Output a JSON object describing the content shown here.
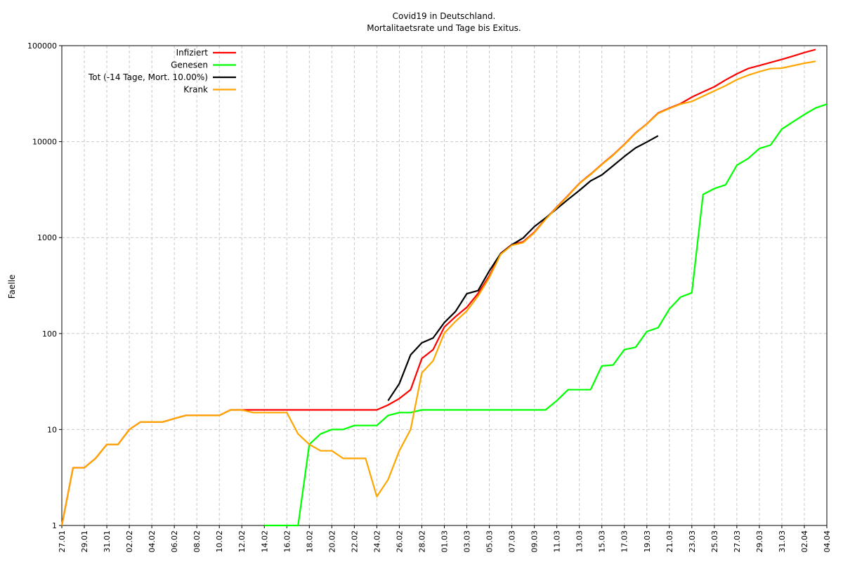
{
  "chart_data": {
    "type": "line",
    "title": "Covid19 in Deutschland.",
    "subtitle": "Mortalitaetsrate und Tage bis Exitus.",
    "ylabel": "Faelle",
    "y_scale": "log",
    "ylim": [
      1,
      100000
    ],
    "y_ticks": [
      1,
      10,
      100,
      1000,
      10000,
      100000
    ],
    "y_tick_labels": [
      "1",
      "10",
      "100",
      "1000",
      "10000",
      "100000"
    ],
    "grid": true,
    "legend_position": "top-left",
    "x": [
      "27.01",
      "28.01",
      "29.01",
      "30.01",
      "31.01",
      "01.02",
      "02.02",
      "03.02",
      "04.02",
      "05.02",
      "06.02",
      "07.02",
      "08.02",
      "09.02",
      "10.02",
      "11.02",
      "12.02",
      "13.02",
      "14.02",
      "15.02",
      "16.02",
      "17.02",
      "18.02",
      "19.02",
      "20.02",
      "21.02",
      "22.02",
      "23.02",
      "24.02",
      "25.02",
      "26.02",
      "27.02",
      "28.02",
      "29.02",
      "01.03",
      "02.03",
      "03.03",
      "04.03",
      "05.03",
      "06.03",
      "07.03",
      "08.03",
      "09.03",
      "10.03",
      "11.03",
      "12.03",
      "13.03",
      "14.03",
      "15.03",
      "16.03",
      "17.03",
      "18.03",
      "19.03",
      "20.03",
      "21.03",
      "22.03",
      "23.03",
      "24.03",
      "25.03",
      "26.03",
      "27.03",
      "28.03",
      "29.03",
      "30.03",
      "31.03",
      "01.04",
      "02.04",
      "03.04",
      "04.04"
    ],
    "x_tick_labels": [
      "27.01",
      "29.01",
      "31.01",
      "02.02",
      "04.02",
      "06.02",
      "08.02",
      "10.02",
      "12.02",
      "14.02",
      "16.02",
      "18.02",
      "20.02",
      "22.02",
      "24.02",
      "26.02",
      "28.02",
      "01.03",
      "03.03",
      "05.03",
      "07.03",
      "09.03",
      "11.03",
      "13.03",
      "15.03",
      "17.03",
      "19.03",
      "21.03",
      "23.03",
      "25.03",
      "27.03",
      "29.03",
      "31.03",
      "02.04",
      "04.04"
    ],
    "series": [
      {
        "name": "Infiziert",
        "color": "#ff0000",
        "values": [
          1,
          4,
          4,
          5,
          7,
          7,
          10,
          12,
          12,
          12,
          13,
          14,
          14,
          14,
          14,
          16,
          16,
          16,
          16,
          16,
          16,
          16,
          16,
          16,
          16,
          16,
          16,
          16,
          16,
          18,
          21,
          26,
          55,
          68,
          117,
          150,
          188,
          262,
          400,
          684,
          847,
          902,
          1139,
          1567,
          2078,
          2745,
          3675,
          4585,
          5813,
          7272,
          9360,
          12327,
          15320,
          19848,
          22364,
          24873,
          29056,
          32991,
          37323,
          43938,
          50871,
          57695,
          62095,
          66885,
          71808,
          77981,
          84794,
          91159,
          null
        ]
      },
      {
        "name": "Genesen",
        "color": "#00ff00",
        "values": [
          null,
          null,
          null,
          null,
          null,
          null,
          null,
          null,
          null,
          null,
          null,
          null,
          null,
          null,
          null,
          null,
          null,
          null,
          1,
          1,
          1,
          1,
          7,
          9,
          10,
          10,
          11,
          11,
          11,
          14,
          15,
          15,
          16,
          16,
          16,
          16,
          16,
          16,
          16,
          16,
          16,
          16,
          16,
          16,
          20,
          26,
          26,
          26,
          46,
          47,
          68,
          72,
          105,
          115,
          180,
          240,
          266,
          2809,
          3243,
          3547,
          5673,
          6658,
          8481,
          9211,
          13500,
          16100,
          19175,
          22440,
          24575
        ]
      },
      {
        "name": "Tot (-14 Tage, Mort. 10.00%)",
        "color": "#000000",
        "values": [
          null,
          null,
          null,
          null,
          null,
          null,
          null,
          null,
          null,
          null,
          null,
          null,
          null,
          null,
          null,
          null,
          null,
          null,
          null,
          null,
          null,
          null,
          null,
          null,
          null,
          null,
          null,
          null,
          null,
          20,
          30,
          60,
          80,
          90,
          130,
          170,
          260,
          280,
          450,
          680,
          840,
          990,
          1300,
          1600,
          2000,
          2500,
          3100,
          3900,
          4500,
          5600,
          7000,
          8600,
          9900,
          11500,
          null,
          null,
          null,
          null,
          null,
          null,
          null,
          null,
          null,
          null,
          null,
          null,
          null,
          null,
          null
        ]
      },
      {
        "name": "Krank",
        "color": "#ffa500",
        "values": [
          1,
          4,
          4,
          5,
          7,
          7,
          10,
          12,
          12,
          12,
          13,
          14,
          14,
          14,
          14,
          16,
          16,
          15,
          15,
          15,
          15,
          9,
          7,
          6,
          6,
          5,
          5,
          5,
          2,
          3,
          6,
          10,
          39,
          52,
          101,
          134,
          172,
          246,
          384,
          668,
          831,
          886,
          1123,
          1547,
          2058,
          2719,
          3649,
          4539,
          5766,
          7204,
          9288,
          12222,
          15205,
          19668,
          22124,
          24607,
          26247,
          29748,
          33776,
          38265,
          44213,
          49214,
          53614,
          57674,
          58308,
          61881,
          65619,
          68719,
          null
        ]
      }
    ]
  }
}
